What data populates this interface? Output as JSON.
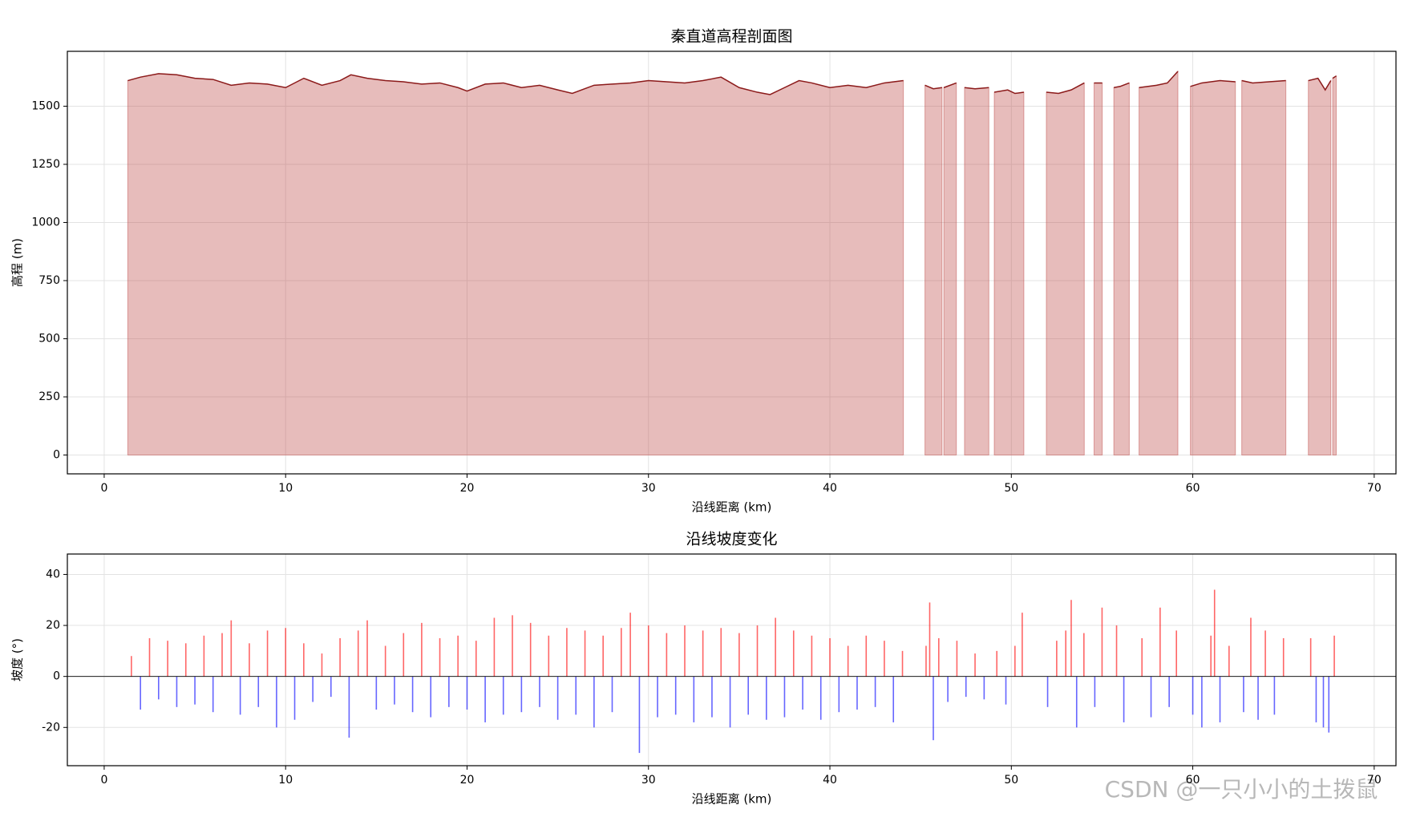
{
  "chart_data": [
    {
      "type": "area",
      "title": "秦直道高程剖面图",
      "xlabel": "沿线距离 (km)",
      "ylabel": "高程 (m)",
      "line_color": "#8b1a1a",
      "fill_color": "#c0504d",
      "grid": true,
      "xlim": [
        -2.03,
        71.2
      ],
      "xticks": [
        0,
        10,
        20,
        30,
        40,
        50,
        60,
        70
      ],
      "ylim": [
        -81,
        1736
      ],
      "yticks": [
        0,
        250,
        500,
        750,
        1000,
        1250,
        1500
      ],
      "x": [
        1.3,
        2,
        3,
        4,
        5,
        6,
        7,
        8,
        9,
        10,
        11,
        12,
        13,
        13.6,
        14.5,
        15.5,
        16.5,
        17.5,
        18.5,
        19.5,
        20,
        21,
        22,
        23,
        24,
        25,
        25.8,
        27,
        28,
        29,
        30,
        31,
        32,
        33,
        34,
        35,
        36,
        36.7,
        37.5,
        38.3,
        39,
        40,
        41,
        42,
        43,
        44.05,
        44.6,
        45.24,
        45.7,
        46.18,
        46.23,
        46.28,
        46.97,
        47.2,
        47.42,
        48.0,
        48.76,
        48.9,
        49.06,
        49.8,
        50.2,
        50.69,
        51.3,
        51.93,
        52.6,
        53.3,
        54.02,
        54.3,
        54.56,
        55.01,
        55.3,
        55.65,
        56.0,
        56.5,
        56.8,
        57.04,
        58.0,
        58.6,
        59.18,
        59.5,
        59.87,
        60.5,
        61.5,
        62.35,
        62.5,
        62.7,
        63.3,
        64.2,
        65.13,
        65.7,
        66.37,
        66.9,
        67.3,
        67.61,
        67.66,
        67.71,
        67.91
      ],
      "values": [
        1610,
        1625,
        1640,
        1635,
        1620,
        1615,
        1590,
        1600,
        1595,
        1580,
        1620,
        1590,
        1610,
        1635,
        1620,
        1610,
        1605,
        1595,
        1600,
        1580,
        1565,
        1595,
        1600,
        1580,
        1590,
        1570,
        1555,
        1590,
        1595,
        1600,
        1610,
        1605,
        1600,
        1610,
        1625,
        1580,
        1560,
        1550,
        1580,
        1610,
        1600,
        1580,
        1590,
        1580,
        1600,
        1610,
        null,
        1590,
        1575,
        1580,
        null,
        1580,
        1600,
        null,
        1580,
        1575,
        1580,
        null,
        1560,
        1570,
        1555,
        1560,
        null,
        1560,
        1555,
        1570,
        1600,
        null,
        1600,
        1600,
        null,
        1580,
        1585,
        1600,
        null,
        1580,
        1590,
        1600,
        1650,
        null,
        1585,
        1600,
        1610,
        1605,
        null,
        1610,
        1600,
        1605,
        1610,
        null,
        1610,
        1620,
        1570,
        1610,
        null,
        1620,
        1630
      ]
    },
    {
      "type": "bar",
      "title": "沿线坡度变化",
      "xlabel": "沿线距离 (km)",
      "ylabel": "坡度 (°)",
      "positive_color": "#ff0000",
      "negative_color": "#0000ff",
      "grid": true,
      "xlim": [
        -2.03,
        71.2
      ],
      "xticks": [
        0,
        10,
        20,
        30,
        40,
        50,
        60,
        70
      ],
      "ylim": [
        -35,
        48
      ],
      "yticks": [
        -20,
        0,
        20,
        40
      ],
      "x": [
        1.5,
        2,
        2.5,
        3,
        3.5,
        4,
        4.5,
        5,
        5.5,
        6,
        6.5,
        7,
        7.5,
        8,
        8.5,
        9,
        9.5,
        10,
        10.5,
        11,
        11.5,
        12,
        12.5,
        13,
        13.5,
        14,
        14.5,
        15,
        15.5,
        16,
        16.5,
        17,
        17.5,
        18,
        18.5,
        19,
        19.5,
        20,
        20.5,
        21,
        21.5,
        22,
        22.5,
        23,
        23.5,
        24,
        24.5,
        25,
        25.5,
        26,
        26.5,
        27,
        27.5,
        28,
        28.5,
        29,
        29.5,
        30,
        30.5,
        31,
        31.5,
        32,
        32.5,
        33,
        33.5,
        34,
        34.5,
        35,
        35.5,
        36,
        36.5,
        37,
        37.5,
        38,
        38.5,
        39,
        39.5,
        40,
        40.5,
        41,
        41.5,
        42,
        42.5,
        43,
        43.5,
        44,
        45.3,
        45.5,
        45.7,
        46.0,
        46.5,
        47.0,
        47.5,
        48.0,
        48.5,
        49.2,
        49.7,
        50.2,
        50.6,
        52.0,
        52.5,
        53.0,
        53.3,
        53.6,
        54.0,
        54.6,
        55.0,
        55.8,
        56.2,
        57.2,
        57.7,
        58.2,
        58.7,
        59.1,
        60.0,
        60.5,
        61.0,
        61.2,
        61.5,
        62.0,
        62.8,
        63.2,
        63.6,
        64.0,
        64.5,
        65.0,
        66.5,
        66.8,
        67.2,
        67.5,
        67.8
      ],
      "values": [
        8,
        -13,
        15,
        -9,
        14,
        -12,
        13,
        -11,
        16,
        -14,
        17,
        22,
        -15,
        13,
        -12,
        18,
        -20,
        19,
        -17,
        13,
        -10,
        9,
        -8,
        15,
        -24,
        18,
        22,
        -13,
        12,
        -11,
        17,
        -14,
        21,
        -16,
        15,
        -12,
        16,
        -13,
        14,
        -18,
        23,
        -15,
        24,
        -14,
        21,
        -12,
        16,
        -17,
        19,
        -15,
        18,
        -20,
        16,
        -14,
        19,
        25,
        -30,
        20,
        -16,
        17,
        -15,
        20,
        -18,
        18,
        -16,
        19,
        -20,
        17,
        -15,
        20,
        -17,
        23,
        -16,
        18,
        -13,
        16,
        -17,
        15,
        -14,
        12,
        -13,
        16,
        -12,
        14,
        -18,
        10,
        12,
        29,
        -25,
        15,
        -10,
        14,
        -8,
        9,
        -9,
        10,
        -11,
        12,
        25,
        -12,
        14,
        18,
        30,
        -20,
        17,
        -12,
        27,
        20,
        -18,
        15,
        -16,
        27,
        -12,
        18,
        -15,
        -20,
        16,
        34,
        -18,
        12,
        -14,
        23,
        -17,
        18,
        -15,
        15,
        15,
        -18,
        -20,
        -22,
        16
      ]
    }
  ],
  "watermark": "CSDN @一只小小的土拨鼠"
}
